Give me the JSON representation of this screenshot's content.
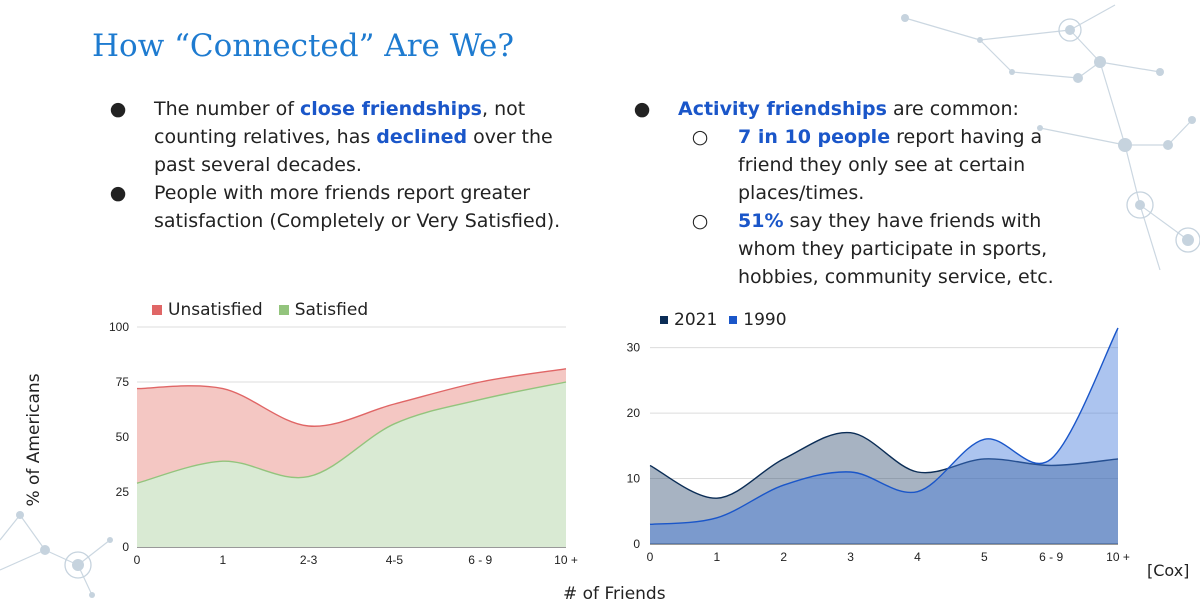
{
  "slide": {
    "title": "How “Connected” Are We?",
    "citation": "[Cox]",
    "x_axis_label": "# of Friends"
  },
  "left_bullets": [
    {
      "parts": [
        {
          "t": "The number of "
        },
        {
          "t": "close friendships",
          "h": true
        },
        {
          "t": ", not counting relatives, has "
        },
        {
          "t": "declined",
          "h": true
        },
        {
          "t": " over the past several decades."
        }
      ]
    },
    {
      "parts": [
        {
          "t": "People with more friends report greater satisfaction (Completely or Very Satisfied)."
        }
      ]
    }
  ],
  "right_bullets": {
    "main": {
      "parts": [
        {
          "t": "Activity friendships",
          "h": true
        },
        {
          "t": " are common:"
        }
      ]
    },
    "subs": [
      {
        "parts": [
          {
            "t": "7 in 10 people",
            "h": true
          },
          {
            "t": " report having a friend they only see at certain places/times."
          }
        ]
      },
      {
        "parts": [
          {
            "t": "51%",
            "h": true
          },
          {
            "t": " say they have friends with whom they participate in sports, hobbies, community service, etc."
          }
        ]
      }
    ]
  },
  "bullet_glyphs": {
    "main": "●",
    "sub": "○"
  },
  "chart_data": [
    {
      "type": "area",
      "categories": [
        "0",
        "1",
        "2-3",
        "4-5",
        "6 - 9",
        "10 +"
      ],
      "series": [
        {
          "name": "Unsatisfied",
          "values": [
            72,
            72,
            55,
            65,
            75,
            81
          ],
          "color": "#e06666",
          "fill": "#f4c7c3"
        },
        {
          "name": "Satisfied",
          "values": [
            29,
            39,
            32,
            56,
            67,
            75
          ],
          "color": "#93c47d",
          "fill": "#d9ead3"
        }
      ],
      "ylabel": "% of Americans",
      "xlabel": "# of Friends",
      "ylim": [
        0,
        100
      ],
      "yticks": [
        0,
        25,
        50,
        75,
        100
      ],
      "grid": true,
      "legend": "top-left"
    },
    {
      "type": "area",
      "categories": [
        "0",
        "1",
        "2",
        "3",
        "4",
        "5",
        "6 - 9",
        "10 +"
      ],
      "series": [
        {
          "name": "2021",
          "values": [
            12,
            7,
            13,
            17,
            11,
            13,
            12,
            13
          ],
          "color": "#0b2d56",
          "fill": "rgba(45,75,110,0.42)"
        },
        {
          "name": "1990",
          "values": [
            3,
            4,
            9,
            11,
            8,
            16,
            13,
            33
          ],
          "color": "#1a56c9",
          "fill": "rgba(70,125,220,0.45)"
        }
      ],
      "xlabel": "# of Friends",
      "ylim": [
        0,
        33
      ],
      "yticks": [
        0,
        10,
        20,
        30
      ],
      "grid": true,
      "legend": "top-left"
    }
  ]
}
